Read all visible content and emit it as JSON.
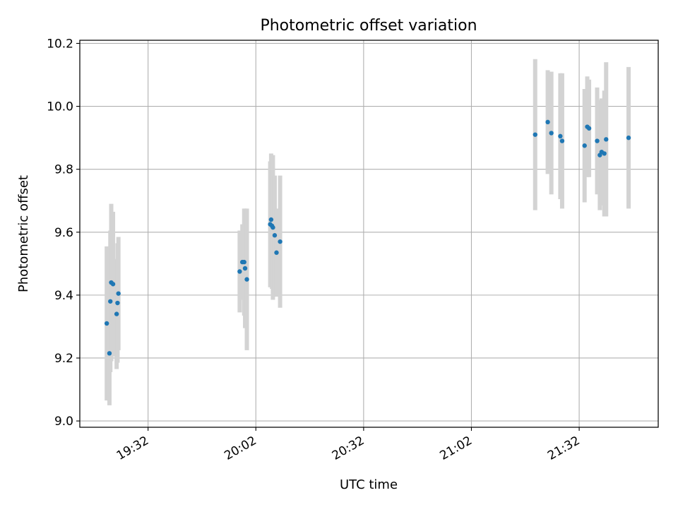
{
  "chart_data": {
    "type": "scatter",
    "title": "Photometric offset variation",
    "xlabel": "UTC time",
    "ylabel": "Photometric offset",
    "xlim": [
      "19:13",
      "21:54"
    ],
    "ylim": [
      8.98,
      10.21
    ],
    "x_ticks": [
      "19:32",
      "20:02",
      "20:32",
      "21:02",
      "21:32"
    ],
    "y_ticks": [
      "9.0",
      "9.2",
      "9.4",
      "9.6",
      "9.8",
      "10.0",
      "10.2"
    ],
    "grid": true,
    "marker_color": "#1f77b4",
    "errorbar_color": "#d3d3d3",
    "points": [
      {
        "x": "19:20:30",
        "y": 9.31,
        "err": 0.245
      },
      {
        "x": "19:21:15",
        "y": 9.215,
        "err": 0.165
      },
      {
        "x": "19:21:30",
        "y": 9.38,
        "err": 0.225
      },
      {
        "x": "19:21:45",
        "y": 9.44,
        "err": 0.25
      },
      {
        "x": "19:22:15",
        "y": 9.435,
        "err": 0.23
      },
      {
        "x": "19:23:15",
        "y": 9.34,
        "err": 0.175
      },
      {
        "x": "19:23:30",
        "y": 9.375,
        "err": 0.19
      },
      {
        "x": "19:23:45",
        "y": 9.405,
        "err": 0.18
      },
      {
        "x": "19:57:30",
        "y": 9.475,
        "err": 0.13
      },
      {
        "x": "19:58:15",
        "y": 9.505,
        "err": 0.12
      },
      {
        "x": "19:58:45",
        "y": 9.505,
        "err": 0.17
      },
      {
        "x": "19:59:00",
        "y": 9.485,
        "err": 0.19
      },
      {
        "x": "19:59:30",
        "y": 9.45,
        "err": 0.225
      },
      {
        "x": "20:06:00",
        "y": 9.625,
        "err": 0.2
      },
      {
        "x": "20:06:15",
        "y": 9.64,
        "err": 0.21
      },
      {
        "x": "20:06:30",
        "y": 9.62,
        "err": 0.2
      },
      {
        "x": "20:06:45",
        "y": 9.615,
        "err": 0.23
      },
      {
        "x": "20:07:15",
        "y": 9.59,
        "err": 0.19
      },
      {
        "x": "20:07:45",
        "y": 9.535,
        "err": 0.14
      },
      {
        "x": "20:08:45",
        "y": 9.57,
        "err": 0.21
      },
      {
        "x": "21:19:45",
        "y": 9.91,
        "err": 0.24
      },
      {
        "x": "21:23:15",
        "y": 9.95,
        "err": 0.165
      },
      {
        "x": "21:24:15",
        "y": 9.915,
        "err": 0.195
      },
      {
        "x": "21:26:45",
        "y": 9.905,
        "err": 0.2
      },
      {
        "x": "21:27:15",
        "y": 9.89,
        "err": 0.215
      },
      {
        "x": "21:33:30",
        "y": 9.875,
        "err": 0.18
      },
      {
        "x": "21:34:15",
        "y": 9.935,
        "err": 0.16
      },
      {
        "x": "21:34:45",
        "y": 9.93,
        "err": 0.155
      },
      {
        "x": "21:37:00",
        "y": 9.89,
        "err": 0.17
      },
      {
        "x": "21:37:45",
        "y": 9.845,
        "err": 0.175
      },
      {
        "x": "21:38:15",
        "y": 9.855,
        "err": 0.17
      },
      {
        "x": "21:39:00",
        "y": 9.85,
        "err": 0.2
      },
      {
        "x": "21:39:30",
        "y": 9.895,
        "err": 0.245
      },
      {
        "x": "21:45:45",
        "y": 9.9,
        "err": 0.225
      }
    ]
  }
}
